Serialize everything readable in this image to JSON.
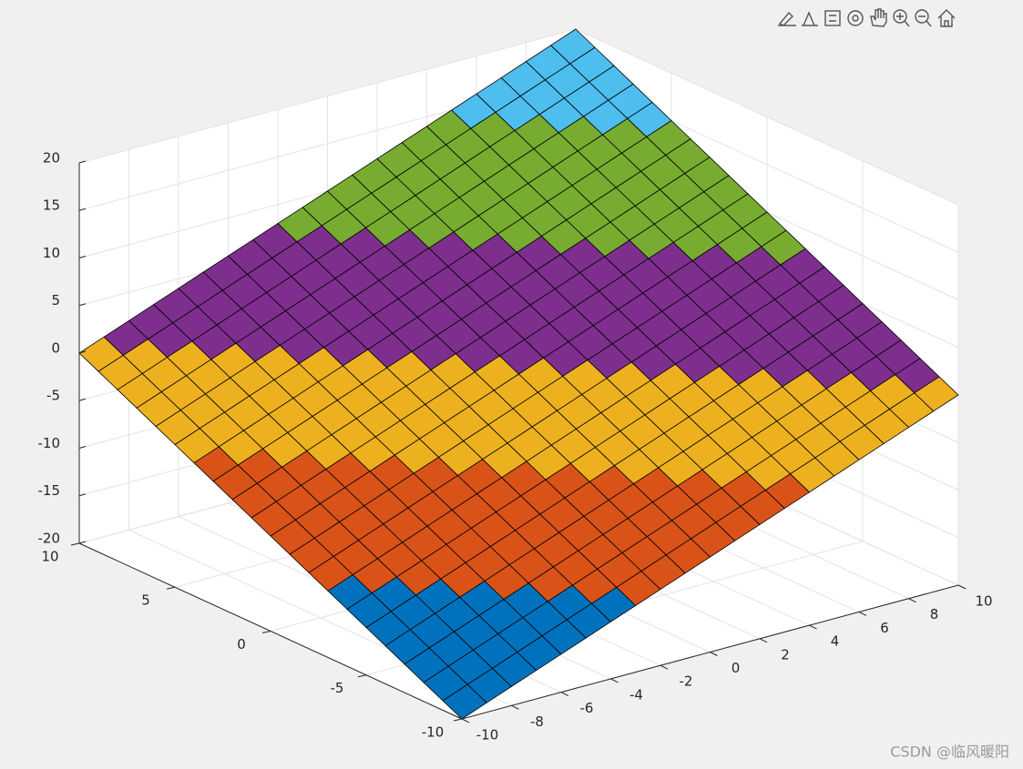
{
  "chart_data": {
    "type": "surface",
    "x": [
      -10,
      -9,
      -8,
      -7,
      -6,
      -5,
      -4,
      -3,
      -2,
      -1,
      0,
      1,
      2,
      3,
      4,
      5,
      6,
      7,
      8,
      9,
      10
    ],
    "y": [
      -10,
      -9,
      -8,
      -7,
      -6,
      -5,
      -4,
      -3,
      -2,
      -1,
      0,
      1,
      2,
      3,
      4,
      5,
      6,
      7,
      8,
      9,
      10
    ],
    "z": [
      [
        -20,
        -19,
        -18,
        -17,
        -16,
        -15,
        -14,
        -13,
        -12,
        -11,
        -10,
        -9,
        -8,
        -7,
        -6,
        -5,
        -4,
        -3,
        -2,
        -1,
        0
      ],
      [
        -19,
        -18,
        -17,
        -16,
        -15,
        -14,
        -13,
        -12,
        -11,
        -10,
        -9,
        -8,
        -7,
        -6,
        -5,
        -4,
        -3,
        -2,
        -1,
        0,
        1
      ],
      [
        -18,
        -17,
        -16,
        -15,
        -14,
        -13,
        -12,
        -11,
        -10,
        -9,
        -8,
        -7,
        -6,
        -5,
        -4,
        -3,
        -2,
        -1,
        0,
        1,
        2
      ],
      [
        -17,
        -16,
        -15,
        -14,
        -13,
        -12,
        -11,
        -10,
        -9,
        -8,
        -7,
        -6,
        -5,
        -4,
        -3,
        -2,
        -1,
        0,
        1,
        2,
        3
      ],
      [
        -16,
        -15,
        -14,
        -13,
        -12,
        -11,
        -10,
        -9,
        -8,
        -7,
        -6,
        -5,
        -4,
        -3,
        -2,
        -1,
        0,
        1,
        2,
        3,
        4
      ],
      [
        -15,
        -14,
        -13,
        -12,
        -11,
        -10,
        -9,
        -8,
        -7,
        -6,
        -5,
        -4,
        -3,
        -2,
        -1,
        0,
        1,
        2,
        3,
        4,
        5
      ],
      [
        -14,
        -13,
        -12,
        -11,
        -10,
        -9,
        -8,
        -7,
        -6,
        -5,
        -4,
        -3,
        -2,
        -1,
        0,
        1,
        2,
        3,
        4,
        5,
        6
      ],
      [
        -13,
        -12,
        -11,
        -10,
        -9,
        -8,
        -7,
        -6,
        -5,
        -4,
        -3,
        -2,
        -1,
        0,
        1,
        2,
        3,
        4,
        5,
        6,
        7
      ],
      [
        -12,
        -11,
        -10,
        -9,
        -8,
        -7,
        -6,
        -5,
        -4,
        -3,
        -2,
        -1,
        0,
        1,
        2,
        3,
        4,
        5,
        6,
        7,
        8
      ],
      [
        -11,
        -10,
        -9,
        -8,
        -7,
        -6,
        -5,
        -4,
        -3,
        -2,
        -1,
        0,
        1,
        2,
        3,
        4,
        5,
        6,
        7,
        8,
        9
      ],
      [
        -10,
        -9,
        -8,
        -7,
        -6,
        -5,
        -4,
        -3,
        -2,
        -1,
        0,
        1,
        2,
        3,
        4,
        5,
        6,
        7,
        8,
        9,
        10
      ],
      [
        -9,
        -8,
        -7,
        -6,
        -5,
        -4,
        -3,
        -2,
        -1,
        0,
        1,
        2,
        3,
        4,
        5,
        6,
        7,
        8,
        9,
        10,
        11
      ],
      [
        -8,
        -7,
        -6,
        -5,
        -4,
        -3,
        -2,
        -1,
        0,
        1,
        2,
        3,
        4,
        5,
        6,
        7,
        8,
        9,
        10,
        11,
        12
      ],
      [
        -7,
        -6,
        -5,
        -4,
        -3,
        -2,
        -1,
        0,
        1,
        2,
        3,
        4,
        5,
        6,
        7,
        8,
        9,
        10,
        11,
        12,
        13
      ],
      [
        -6,
        -5,
        -4,
        -3,
        -2,
        -1,
        0,
        1,
        2,
        3,
        4,
        5,
        6,
        7,
        8,
        9,
        10,
        11,
        12,
        13,
        14
      ],
      [
        -5,
        -4,
        -3,
        -2,
        -1,
        0,
        1,
        2,
        3,
        4,
        5,
        6,
        7,
        8,
        9,
        10,
        11,
        12,
        13,
        14,
        15
      ],
      [
        -4,
        -3,
        -2,
        -1,
        0,
        1,
        2,
        3,
        4,
        5,
        6,
        7,
        8,
        9,
        10,
        11,
        12,
        13,
        14,
        15,
        16
      ],
      [
        -3,
        -2,
        -1,
        0,
        1,
        2,
        3,
        4,
        5,
        6,
        7,
        8,
        9,
        10,
        11,
        12,
        13,
        14,
        15,
        16,
        17
      ],
      [
        -2,
        -1,
        0,
        1,
        2,
        3,
        4,
        5,
        6,
        7,
        8,
        9,
        10,
        11,
        12,
        13,
        14,
        15,
        16,
        17,
        18
      ],
      [
        -1,
        0,
        1,
        2,
        3,
        4,
        5,
        6,
        7,
        8,
        9,
        10,
        11,
        12,
        13,
        14,
        15,
        16,
        17,
        18,
        19
      ],
      [
        0,
        1,
        2,
        3,
        4,
        5,
        6,
        7,
        8,
        9,
        10,
        11,
        12,
        13,
        14,
        15,
        16,
        17,
        18,
        19,
        20
      ]
    ],
    "xlim": [
      -10,
      10
    ],
    "ylim": [
      -10,
      10
    ],
    "zlim": [
      -20,
      20
    ],
    "xticks": [
      -10,
      -8,
      -6,
      -4,
      -2,
      0,
      2,
      4,
      6,
      8,
      10
    ],
    "yticks": [
      -10,
      -5,
      0,
      5,
      10
    ],
    "zticks": [
      -20,
      -15,
      -10,
      -5,
      0,
      5,
      10,
      15,
      20
    ],
    "colormap": [
      "#0072bd",
      "#d95319",
      "#edb120",
      "#7e2f8e",
      "#77ac30",
      "#4dbeee"
    ],
    "clim": [
      -20,
      20
    ],
    "grid": true
  },
  "watermark": "CSDN @临风暖阳"
}
